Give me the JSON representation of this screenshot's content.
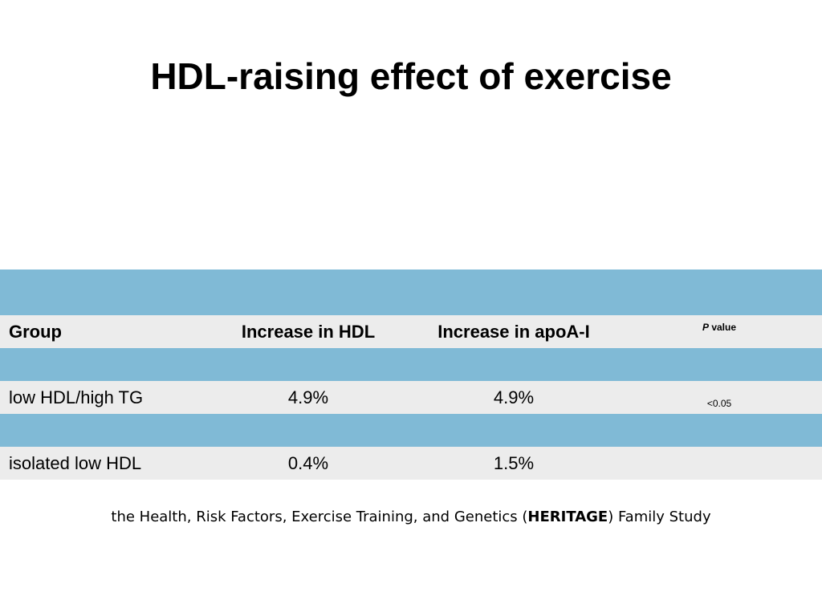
{
  "title": "HDL-raising effect of exercise",
  "table": {
    "headers": {
      "group": "Group",
      "hdl": "Increase in HDL",
      "apoa": "Increase in apoA-I",
      "p_italic": "P",
      "p_rest": " value"
    },
    "rows": [
      {
        "group": "low HDL/high TG",
        "hdl": "4.9%",
        "apoa": "4.9%",
        "p": "<0.05"
      },
      {
        "group": "isolated low HDL",
        "hdl": "0.4%",
        "apoa": "1.5%",
        "p": ""
      }
    ]
  },
  "footnote": {
    "before": "the Health, Risk Factors, Exercise Training, and Genetics (",
    "bold": "HERITAGE",
    "after": ") Family Study"
  },
  "colors": {
    "band_blue": "#80bad6",
    "row_gray": "#ececec"
  }
}
